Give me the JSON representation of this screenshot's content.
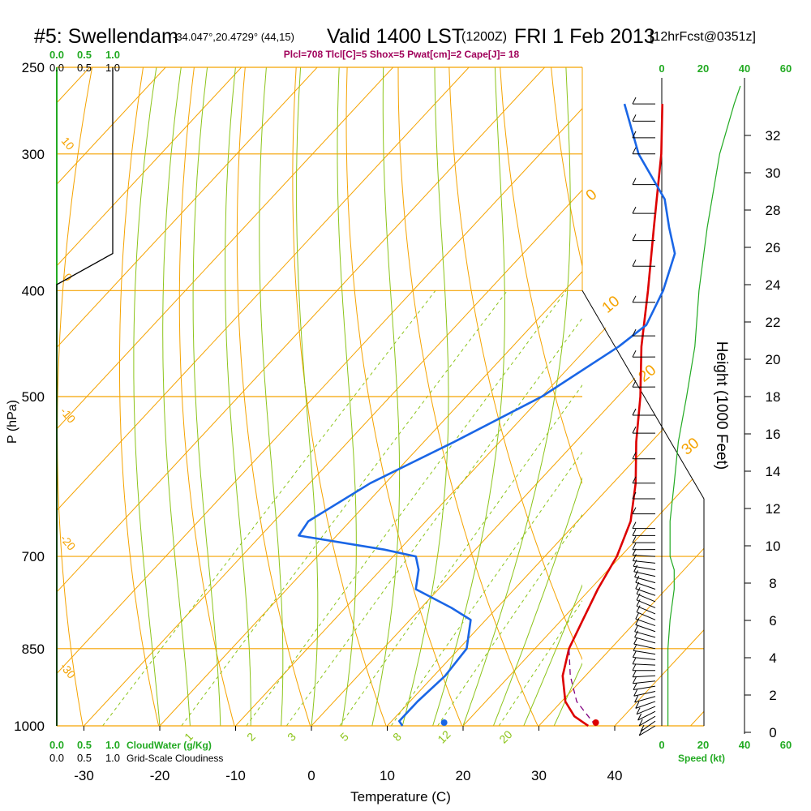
{
  "header": {
    "station": "#5: Swellendam",
    "coords": "-34.047°,20.4729° (44,15)",
    "valid": "Valid 1400 LST",
    "utc": "(1200Z)",
    "date": "FRI 1 Feb 2013",
    "forecast": "[12hrFcst@0351z]",
    "indices": "Plcl=708 Tlcl[C]=5 Shox=5 Pwat[cm]=2 Cape[J]= 18"
  },
  "colors": {
    "temperature": "#dd0000",
    "dewpoint": "#1a66e6",
    "isotherm": "#f5a300",
    "dry_adiabat": "#8cc41a",
    "mixing_ratio": "#8cc41a",
    "isobar": "#f5a300",
    "cloud_axis": "#22aa22",
    "parcel": "#800080",
    "wind_barb": "#000000"
  },
  "chart_data": {
    "type": "line",
    "subtype": "skew-T log-P sounding",
    "xlabel": "Temperature (C)",
    "ylabel": "P (hPa)",
    "right_axis_label": "Height (1000 Feet)",
    "x_ticks": [
      -30,
      -20,
      -10,
      0,
      10,
      20,
      30,
      40
    ],
    "x_tick_labels": [
      "-30",
      "-20",
      "-10",
      "0",
      "10",
      "20",
      "30",
      "40"
    ],
    "pressure_ticks": [
      250,
      300,
      400,
      500,
      700,
      850,
      1000
    ],
    "pressure_tick_labels": [
      "250",
      "300",
      "400",
      "500",
      "700",
      "850",
      "1000"
    ],
    "height_ticks": [
      0,
      2,
      4,
      6,
      8,
      10,
      12,
      14,
      16,
      18,
      20,
      22,
      24,
      26,
      28,
      30,
      32
    ],
    "height_tick_labels": [
      "0",
      "2",
      "4",
      "6",
      "8",
      "10",
      "12",
      "14",
      "16",
      "18",
      "20",
      "22",
      "24",
      "26",
      "28",
      "30",
      "32"
    ],
    "mixing_ratio_labels": [
      "1",
      "2",
      "3",
      "5",
      "8",
      "12",
      "20"
    ],
    "dry_adiabat_labels": [
      "0",
      "10",
      "20",
      "30"
    ],
    "isotherm_edge_labels": [
      "10",
      "0",
      "-10",
      "-20",
      "-30"
    ],
    "cloud_scale_top": [
      "0.0",
      "0.5",
      "1.0"
    ],
    "cloudiness_scale_top": [
      "0.0",
      "0.5",
      "1.0"
    ],
    "cloud_scale_bottom": [
      "0.0",
      "0.5",
      "1.0"
    ],
    "cloudiness_scale_bottom": [
      "0.0",
      "0.5",
      "1.0"
    ],
    "cloudwater_label": "CloudWater (g/Kg)",
    "cloudiness_label": "Grid-Scale Cloudiness",
    "speed_ticks": [
      "0",
      "20",
      "40",
      "60"
    ],
    "speed_label": "Speed (kt)",
    "series": [
      {
        "name": "temperature",
        "points": [
          [
            1000,
            36.5
          ],
          [
            980,
            33.5
          ],
          [
            950,
            30.5
          ],
          [
            900,
            27.0
          ],
          [
            850,
            24.5
          ],
          [
            800,
            22.8
          ],
          [
            750,
            21.0
          ],
          [
            710,
            19.8
          ],
          [
            700,
            19.5
          ],
          [
            650,
            17.0
          ],
          [
            600,
            13.0
          ],
          [
            550,
            8.0
          ],
          [
            500,
            3.0
          ],
          [
            450,
            -3.0
          ],
          [
            400,
            -9.0
          ],
          [
            350,
            -16.0
          ],
          [
            300,
            -24.0
          ],
          [
            270,
            -30.0
          ]
        ]
      },
      {
        "name": "dewpoint",
        "points": [
          [
            1000,
            12.0
          ],
          [
            990,
            11.0
          ],
          [
            950,
            11.0
          ],
          [
            900,
            11.5
          ],
          [
            850,
            11.0
          ],
          [
            800,
            8.0
          ],
          [
            780,
            4.0
          ],
          [
            750,
            -3.0
          ],
          [
            720,
            -5.0
          ],
          [
            700,
            -7.0
          ],
          [
            690,
            -12.0
          ],
          [
            670,
            -25.0
          ],
          [
            650,
            -25.5
          ],
          [
            600,
            -22.0
          ],
          [
            550,
            -16.0
          ],
          [
            500,
            -10.0
          ],
          [
            450,
            -6.0
          ],
          [
            430,
            -5.0
          ],
          [
            400,
            -7.0
          ],
          [
            370,
            -10.0
          ],
          [
            350,
            -14.0
          ],
          [
            330,
            -18.0
          ],
          [
            300,
            -27.0
          ],
          [
            270,
            -35.0
          ]
        ]
      },
      {
        "name": "parcel",
        "points": [
          [
            1000,
            37.5
          ],
          [
            950,
            32.0
          ],
          [
            900,
            28.0
          ],
          [
            850,
            24.5
          ]
        ]
      }
    ],
    "surface_temperature_marker": [
      1000,
      37.5
    ],
    "surface_dewpoint_marker": [
      1000,
      17.5
    ],
    "cloud_fraction_profile": [
      [
        250,
        1.0
      ],
      [
        370,
        1.0
      ],
      [
        395,
        0.0
      ],
      [
        1000,
        0.0
      ]
    ],
    "wind_speed_profile_kt": [
      [
        1000,
        3
      ],
      [
        970,
        3
      ],
      [
        950,
        3
      ],
      [
        900,
        3
      ],
      [
        850,
        3
      ],
      [
        800,
        4
      ],
      [
        750,
        6
      ],
      [
        720,
        6
      ],
      [
        700,
        4
      ],
      [
        650,
        4
      ],
      [
        600,
        6
      ],
      [
        550,
        8
      ],
      [
        500,
        12
      ],
      [
        450,
        16
      ],
      [
        400,
        18
      ],
      [
        350,
        22
      ],
      [
        300,
        28
      ],
      [
        270,
        35
      ],
      [
        260,
        38
      ]
    ],
    "wind_barbs": [
      {
        "p": 1000,
        "dir": 135,
        "spd": 5
      },
      {
        "p": 990,
        "dir": 140,
        "spd": 8
      },
      {
        "p": 980,
        "dir": 135,
        "spd": 10
      },
      {
        "p": 970,
        "dir": 130,
        "spd": 10
      },
      {
        "p": 960,
        "dir": 125,
        "spd": 10
      },
      {
        "p": 950,
        "dir": 120,
        "spd": 10
      },
      {
        "p": 940,
        "dir": 115,
        "spd": 10
      },
      {
        "p": 930,
        "dir": 110,
        "spd": 10
      },
      {
        "p": 920,
        "dir": 105,
        "spd": 10
      },
      {
        "p": 910,
        "dir": 100,
        "spd": 10
      },
      {
        "p": 900,
        "dir": 95,
        "spd": 10
      },
      {
        "p": 890,
        "dir": 90,
        "spd": 10
      },
      {
        "p": 880,
        "dir": 85,
        "spd": 10
      },
      {
        "p": 870,
        "dir": 80,
        "spd": 10
      },
      {
        "p": 860,
        "dir": 75,
        "spd": 10
      },
      {
        "p": 850,
        "dir": 70,
        "spd": 10
      },
      {
        "p": 840,
        "dir": 65,
        "spd": 10
      },
      {
        "p": 830,
        "dir": 65,
        "spd": 10
      },
      {
        "p": 820,
        "dir": 60,
        "spd": 10
      },
      {
        "p": 810,
        "dir": 60,
        "spd": 10
      },
      {
        "p": 800,
        "dir": 55,
        "spd": 10
      },
      {
        "p": 790,
        "dir": 55,
        "spd": 10
      },
      {
        "p": 780,
        "dir": 55,
        "spd": 10
      },
      {
        "p": 770,
        "dir": 55,
        "spd": 10
      },
      {
        "p": 760,
        "dir": 60,
        "spd": 10
      },
      {
        "p": 750,
        "dir": 60,
        "spd": 10
      },
      {
        "p": 740,
        "dir": 65,
        "spd": 10
      },
      {
        "p": 730,
        "dir": 70,
        "spd": 10
      },
      {
        "p": 720,
        "dir": 75,
        "spd": 10
      },
      {
        "p": 710,
        "dir": 80,
        "spd": 10
      },
      {
        "p": 700,
        "dir": 85,
        "spd": 10
      },
      {
        "p": 690,
        "dir": 90,
        "spd": 10
      },
      {
        "p": 680,
        "dir": 90,
        "spd": 10
      },
      {
        "p": 670,
        "dir": 90,
        "spd": 10
      },
      {
        "p": 660,
        "dir": 90,
        "spd": 10
      },
      {
        "p": 640,
        "dir": 90,
        "spd": 10
      },
      {
        "p": 620,
        "dir": 90,
        "spd": 10
      },
      {
        "p": 600,
        "dir": 90,
        "spd": 10
      },
      {
        "p": 570,
        "dir": 90,
        "spd": 10
      },
      {
        "p": 540,
        "dir": 90,
        "spd": 10
      },
      {
        "p": 520,
        "dir": 90,
        "spd": 10
      },
      {
        "p": 490,
        "dir": 90,
        "spd": 10
      },
      {
        "p": 460,
        "dir": 90,
        "spd": 10
      },
      {
        "p": 440,
        "dir": 90,
        "spd": 10
      },
      {
        "p": 410,
        "dir": 90,
        "spd": 10
      },
      {
        "p": 380,
        "dir": 90,
        "spd": 10
      },
      {
        "p": 360,
        "dir": 90,
        "spd": 10
      },
      {
        "p": 340,
        "dir": 90,
        "spd": 10
      },
      {
        "p": 320,
        "dir": 90,
        "spd": 10
      },
      {
        "p": 300,
        "dir": 90,
        "spd": 10
      },
      {
        "p": 290,
        "dir": 90,
        "spd": 10
      },
      {
        "p": 280,
        "dir": 90,
        "spd": 10
      },
      {
        "p": 270,
        "dir": 90,
        "spd": 10
      }
    ]
  }
}
